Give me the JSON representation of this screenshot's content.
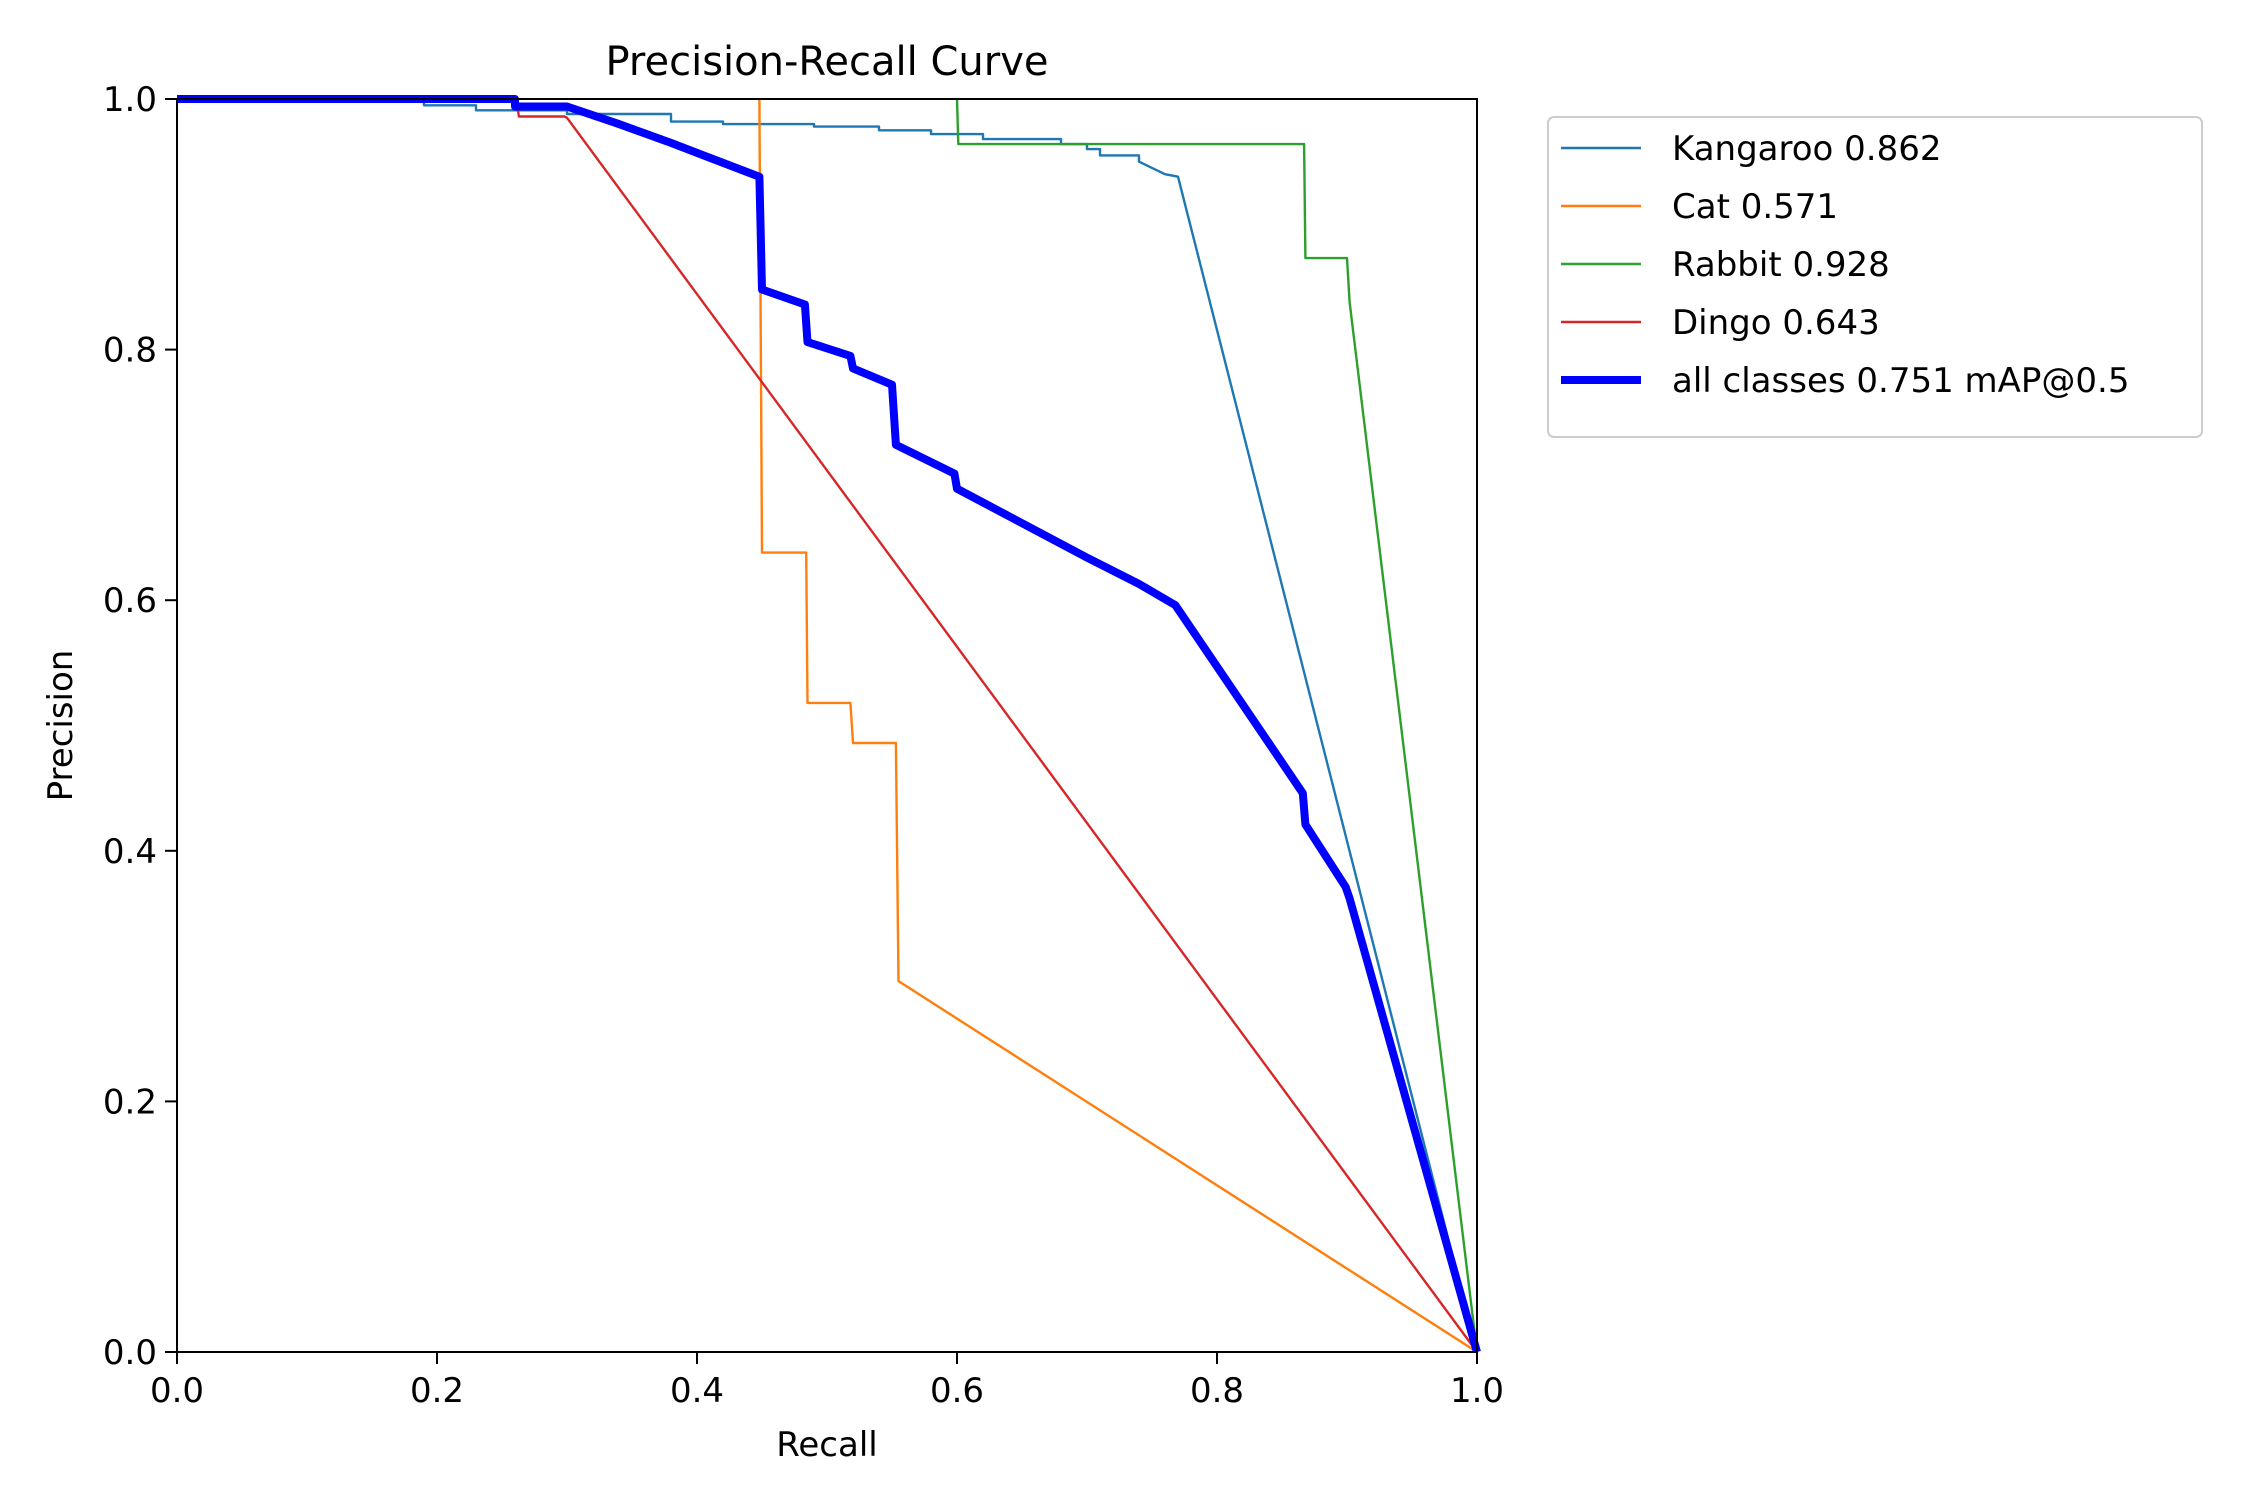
{
  "chart_data": {
    "type": "line",
    "title": "Precision-Recall Curve",
    "xlabel": "Recall",
    "ylabel": "Precision",
    "xlim": [
      0.0,
      1.0
    ],
    "ylim": [
      0.0,
      1.0
    ],
    "xticks": [
      "0.0",
      "0.2",
      "0.4",
      "0.6",
      "0.8",
      "1.0"
    ],
    "yticks": [
      "0.0",
      "0.2",
      "0.4",
      "0.6",
      "0.8",
      "1.0"
    ],
    "grid": false,
    "legend_position": "outside-top-right",
    "series": [
      {
        "name": "Kangaroo 0.862",
        "color": "#1f77b4",
        "emphasis": "thin",
        "points": [
          [
            0.0,
            1.0
          ],
          [
            0.19,
            1.0
          ],
          [
            0.19,
            0.995
          ],
          [
            0.23,
            0.995
          ],
          [
            0.23,
            0.991
          ],
          [
            0.3,
            0.991
          ],
          [
            0.3,
            0.988
          ],
          [
            0.38,
            0.988
          ],
          [
            0.38,
            0.982
          ],
          [
            0.42,
            0.982
          ],
          [
            0.42,
            0.98
          ],
          [
            0.49,
            0.98
          ],
          [
            0.49,
            0.978
          ],
          [
            0.54,
            0.978
          ],
          [
            0.54,
            0.975
          ],
          [
            0.58,
            0.975
          ],
          [
            0.58,
            0.972
          ],
          [
            0.62,
            0.972
          ],
          [
            0.62,
            0.968
          ],
          [
            0.68,
            0.968
          ],
          [
            0.68,
            0.964
          ],
          [
            0.7,
            0.964
          ],
          [
            0.7,
            0.96
          ],
          [
            0.71,
            0.96
          ],
          [
            0.71,
            0.955
          ],
          [
            0.74,
            0.955
          ],
          [
            0.74,
            0.95
          ],
          [
            0.75,
            0.945
          ],
          [
            0.76,
            0.94
          ],
          [
            0.77,
            0.938
          ],
          [
            1.0,
            0.0
          ]
        ]
      },
      {
        "name": "Cat 0.571",
        "color": "#ff7f0e",
        "emphasis": "thin",
        "points": [
          [
            0.448,
            1.0
          ],
          [
            0.45,
            0.638
          ],
          [
            0.484,
            0.638
          ],
          [
            0.485,
            0.518
          ],
          [
            0.518,
            0.518
          ],
          [
            0.52,
            0.486
          ],
          [
            0.553,
            0.486
          ],
          [
            0.555,
            0.296
          ],
          [
            1.0,
            0.0
          ]
        ]
      },
      {
        "name": "Rabbit 0.928",
        "color": "#2ca02c",
        "emphasis": "thin",
        "points": [
          [
            0.6,
            1.0
          ],
          [
            0.601,
            0.964
          ],
          [
            0.867,
            0.964
          ],
          [
            0.868,
            0.873
          ],
          [
            0.9,
            0.873
          ],
          [
            0.902,
            0.838
          ],
          [
            1.0,
            0.0
          ]
        ]
      },
      {
        "name": "Dingo 0.643",
        "color": "#d62728",
        "emphasis": "thin",
        "points": [
          [
            0.0,
            1.0
          ],
          [
            0.261,
            1.0
          ],
          [
            0.263,
            0.986
          ],
          [
            0.298,
            0.986
          ],
          [
            0.3,
            0.985
          ],
          [
            1.0,
            0.0
          ]
        ]
      },
      {
        "name": "all classes 0.751 mAP@0.5",
        "color": "#0000ff",
        "emphasis": "bold",
        "points": [
          [
            0.0,
            1.0
          ],
          [
            0.26,
            1.0
          ],
          [
            0.26,
            0.994
          ],
          [
            0.3,
            0.994
          ],
          [
            0.34,
            0.98
          ],
          [
            0.38,
            0.965
          ],
          [
            0.41,
            0.953
          ],
          [
            0.448,
            0.938
          ],
          [
            0.45,
            0.848
          ],
          [
            0.483,
            0.836
          ],
          [
            0.485,
            0.806
          ],
          [
            0.518,
            0.795
          ],
          [
            0.52,
            0.785
          ],
          [
            0.55,
            0.772
          ],
          [
            0.553,
            0.724
          ],
          [
            0.598,
            0.701
          ],
          [
            0.6,
            0.689
          ],
          [
            0.7,
            0.634
          ],
          [
            0.74,
            0.613
          ],
          [
            0.768,
            0.596
          ],
          [
            0.866,
            0.446
          ],
          [
            0.868,
            0.421
          ],
          [
            0.899,
            0.371
          ],
          [
            0.902,
            0.362
          ],
          [
            1.0,
            0.0
          ]
        ]
      }
    ]
  }
}
